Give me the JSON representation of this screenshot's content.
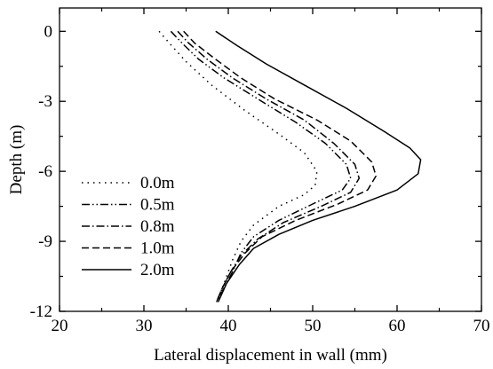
{
  "chart_data": {
    "type": "line",
    "xlabel": "Lateral displacement in wall (mm)",
    "ylabel": "Depth (m)",
    "xlim": [
      20,
      70
    ],
    "ylim": [
      -12,
      1
    ],
    "xticks": [
      20,
      30,
      40,
      50,
      60,
      70
    ],
    "yticks": [
      0,
      -3,
      -6,
      -9,
      -12
    ],
    "grid": false,
    "legend_position": "lower-left",
    "series": [
      {
        "name": "0.0m",
        "dash": "1.5,5",
        "points": [
          [
            31.8,
            0
          ],
          [
            33,
            -0.5
          ],
          [
            35,
            -1.3
          ],
          [
            38,
            -2.3
          ],
          [
            42,
            -3.4
          ],
          [
            46,
            -4.4
          ],
          [
            49,
            -5.2
          ],
          [
            50.5,
            -6
          ],
          [
            50.3,
            -6.6
          ],
          [
            49,
            -7
          ],
          [
            46,
            -7.5
          ],
          [
            43,
            -8.3
          ],
          [
            41.5,
            -9
          ],
          [
            40.5,
            -9.8
          ],
          [
            39.5,
            -10.8
          ],
          [
            38.6,
            -11.6
          ]
        ]
      },
      {
        "name": "0.5m",
        "dash": "9,3,1.5,3,1.5,3",
        "points": [
          [
            33.2,
            0
          ],
          [
            34.5,
            -0.5
          ],
          [
            36.5,
            -1.2
          ],
          [
            39.5,
            -2
          ],
          [
            43.5,
            -2.9
          ],
          [
            48,
            -3.9
          ],
          [
            51.5,
            -4.8
          ],
          [
            54,
            -5.7
          ],
          [
            54.5,
            -6.3
          ],
          [
            53.5,
            -6.8
          ],
          [
            50,
            -7.4
          ],
          [
            46,
            -8.1
          ],
          [
            43,
            -8.8
          ],
          [
            41.5,
            -9.5
          ],
          [
            40.5,
            -10.3
          ],
          [
            39.5,
            -11
          ],
          [
            38.6,
            -11.6
          ]
        ]
      },
      {
        "name": "0.8m",
        "dash": "9,3,1.5,3",
        "points": [
          [
            34,
            0
          ],
          [
            35.3,
            -0.5
          ],
          [
            37.5,
            -1.2
          ],
          [
            40.5,
            -2
          ],
          [
            44.5,
            -2.9
          ],
          [
            49,
            -3.8
          ],
          [
            52.5,
            -4.8
          ],
          [
            55,
            -5.7
          ],
          [
            55.5,
            -6.3
          ],
          [
            54.5,
            -6.9
          ],
          [
            51,
            -7.5
          ],
          [
            46.5,
            -8.2
          ],
          [
            43.5,
            -8.9
          ],
          [
            41.5,
            -9.6
          ],
          [
            40.3,
            -10.3
          ],
          [
            39.3,
            -11
          ],
          [
            38.6,
            -11.6
          ]
        ]
      },
      {
        "name": "1.0m",
        "dash": "8,4",
        "points": [
          [
            34.7,
            0
          ],
          [
            36,
            -0.5
          ],
          [
            38.5,
            -1.2
          ],
          [
            41.5,
            -2
          ],
          [
            45.5,
            -2.9
          ],
          [
            50.5,
            -3.8
          ],
          [
            54.5,
            -4.7
          ],
          [
            57,
            -5.6
          ],
          [
            57.5,
            -6.2
          ],
          [
            56.5,
            -6.8
          ],
          [
            53,
            -7.4
          ],
          [
            48,
            -8.1
          ],
          [
            44,
            -8.8
          ],
          [
            42,
            -9.5
          ],
          [
            40.3,
            -10.3
          ],
          [
            39.3,
            -11
          ],
          [
            38.6,
            -11.6
          ]
        ]
      },
      {
        "name": "2.0m",
        "dash": "",
        "points": [
          [
            38.5,
            0
          ],
          [
            41,
            -0.6
          ],
          [
            44.5,
            -1.4
          ],
          [
            49,
            -2.3
          ],
          [
            54,
            -3.3
          ],
          [
            58.5,
            -4.3
          ],
          [
            61.5,
            -5
          ],
          [
            62.8,
            -5.5
          ],
          [
            62.5,
            -6.1
          ],
          [
            60,
            -6.8
          ],
          [
            55,
            -7.5
          ],
          [
            50,
            -8.1
          ],
          [
            46,
            -8.7
          ],
          [
            43,
            -9.3
          ],
          [
            41.3,
            -10
          ],
          [
            39.8,
            -10.8
          ],
          [
            38.8,
            -11.6
          ]
        ]
      }
    ]
  }
}
